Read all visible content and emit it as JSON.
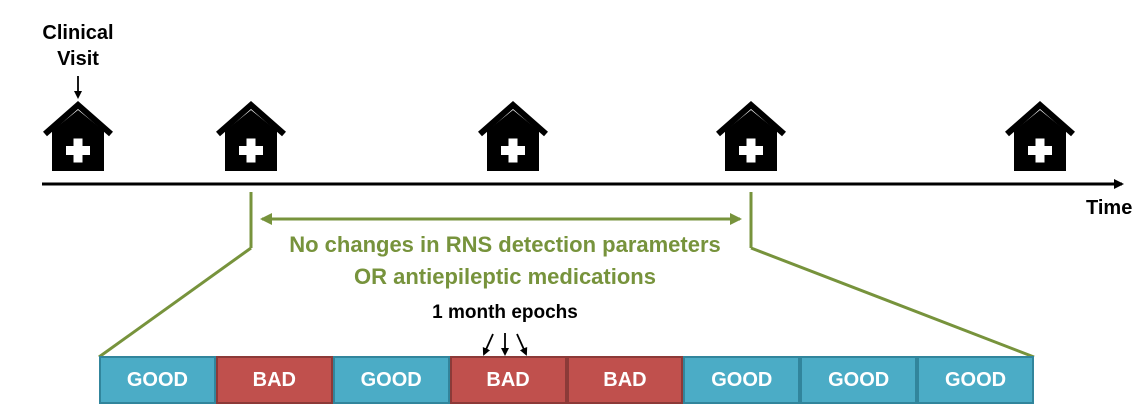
{
  "visit_label_line1": "Clinical",
  "visit_label_line2": "Visit",
  "time_label": "Time",
  "range_text_line1": "No changes in RNS detection parameters",
  "range_text_line2": "OR antiepileptic medications",
  "epoch_label": "1 month epochs",
  "visit_icons": [
    "hospital-icon",
    "hospital-icon",
    "hospital-icon",
    "hospital-icon",
    "hospital-icon"
  ],
  "epochs": [
    {
      "label": "GOOD",
      "status": "good"
    },
    {
      "label": "BAD",
      "status": "bad"
    },
    {
      "label": "GOOD",
      "status": "good"
    },
    {
      "label": "BAD",
      "status": "bad"
    },
    {
      "label": "BAD",
      "status": "bad"
    },
    {
      "label": "GOOD",
      "status": "good"
    },
    {
      "label": "GOOD",
      "status": "good"
    },
    {
      "label": "GOOD",
      "status": "good"
    }
  ],
  "colors": {
    "good": "#4BACC6",
    "bad": "#C0504D",
    "accent_green": "#77933C",
    "axis": "#000000"
  }
}
